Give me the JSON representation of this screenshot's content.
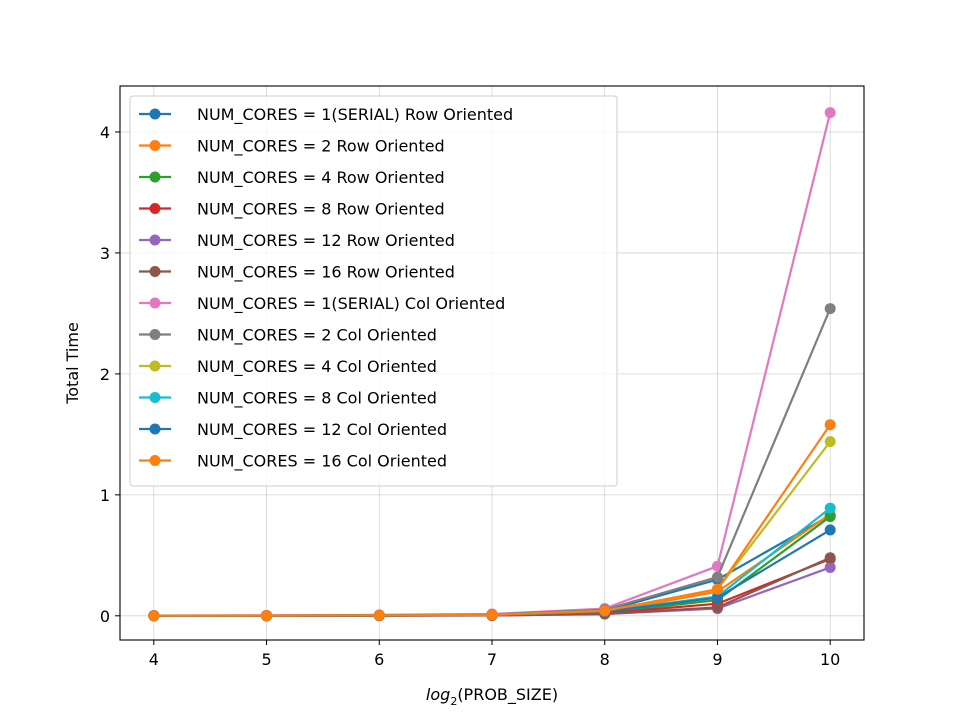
{
  "chart_data": {
    "type": "line",
    "title": "",
    "xlabel": "log",
    "xlabel_sub": "2",
    "xlabel_rest": "(PROB_SIZE)",
    "ylabel": "Total Time",
    "x": [
      4,
      5,
      6,
      7,
      8,
      9,
      10
    ],
    "xlim": [
      3.7,
      10.3
    ],
    "ylim": [
      -0.2,
      4.38
    ],
    "xticks": [
      4,
      5,
      6,
      7,
      8,
      9,
      10
    ],
    "yticks": [
      0,
      1,
      2,
      3,
      4
    ],
    "grid": true,
    "legend_position": "top-left",
    "series": [
      {
        "name": "NUM_CORES = 1(SERIAL) Row Oriented",
        "color": "#1f77b4",
        "values": [
          0.0,
          0.0,
          0.003,
          0.007,
          0.04,
          0.3,
          0.83
        ]
      },
      {
        "name": "NUM_CORES = 2 Row Oriented",
        "color": "#ff7f0e",
        "values": [
          0.0,
          0.0,
          0.002,
          0.005,
          0.03,
          0.2,
          0.84
        ]
      },
      {
        "name": "NUM_CORES = 4 Row Oriented",
        "color": "#2ca02c",
        "values": [
          0.0,
          0.0,
          0.002,
          0.004,
          0.025,
          0.13,
          0.82
        ]
      },
      {
        "name": "NUM_CORES = 8 Row Oriented",
        "color": "#d62728",
        "values": [
          0.0,
          0.0,
          0.001,
          0.003,
          0.02,
          0.1,
          0.47
        ]
      },
      {
        "name": "NUM_CORES = 12 Row Oriented",
        "color": "#9467bd",
        "values": [
          0.0,
          0.0,
          0.001,
          0.003,
          0.015,
          0.06,
          0.4
        ]
      },
      {
        "name": "NUM_CORES = 16 Row Oriented",
        "color": "#8c564b",
        "values": [
          0.0,
          0.0,
          0.001,
          0.003,
          0.015,
          0.07,
          0.48
        ]
      },
      {
        "name": "NUM_CORES = 1(SERIAL) Col Oriented",
        "color": "#e377c2",
        "values": [
          0.002,
          0.004,
          0.008,
          0.015,
          0.06,
          0.41,
          4.16
        ]
      },
      {
        "name": "NUM_CORES = 2 Col Oriented",
        "color": "#7f7f7f",
        "values": [
          0.002,
          0.003,
          0.006,
          0.012,
          0.05,
          0.32,
          2.54
        ]
      },
      {
        "name": "NUM_CORES = 4 Col Oriented",
        "color": "#bcbd22",
        "values": [
          0.001,
          0.002,
          0.004,
          0.009,
          0.04,
          0.22,
          1.44
        ]
      },
      {
        "name": "NUM_CORES = 8 Col Oriented",
        "color": "#17becf",
        "values": [
          0.001,
          0.002,
          0.003,
          0.007,
          0.035,
          0.16,
          0.89
        ]
      },
      {
        "name": "NUM_CORES = 12 Col Oriented",
        "color": "#1f77b4",
        "values": [
          0.001,
          0.002,
          0.003,
          0.007,
          0.035,
          0.15,
          0.71
        ]
      },
      {
        "name": "NUM_CORES = 16 Col Oriented",
        "color": "#ff7f0e",
        "values": [
          0.001,
          0.002,
          0.004,
          0.008,
          0.04,
          0.22,
          1.58
        ]
      }
    ]
  }
}
